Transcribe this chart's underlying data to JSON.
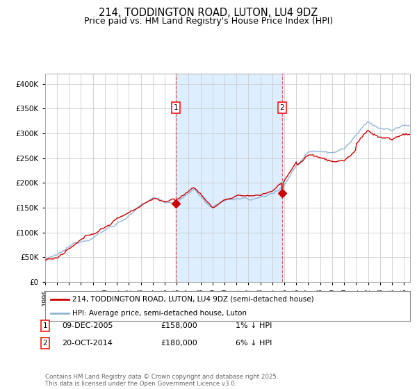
{
  "title_line1": "214, TODDINGTON ROAD, LUTON, LU4 9DZ",
  "title_line2": "Price paid vs. HM Land Registry's House Price Index (HPI)",
  "title_fontsize": 10.5,
  "subtitle_fontsize": 9,
  "hpi_color": "#92b4d4",
  "price_color": "#cc0000",
  "marker_color": "#cc0000",
  "bg_color": "#ffffff",
  "plot_bg_color": "#ffffff",
  "grid_color": "#cccccc",
  "highlight_color": "#dceeff",
  "sale1_date_num": 2005.94,
  "sale1_price": 158000,
  "sale2_date_num": 2014.8,
  "sale2_price": 180000,
  "legend_line1": "214, TODDINGTON ROAD, LUTON, LU4 9DZ (semi-detached house)",
  "legend_line2": "HPI: Average price, semi-detached house, Luton",
  "annotation1_label": "1",
  "annotation1_date": "09-DEC-2005",
  "annotation1_price": "£158,000",
  "annotation1_hpi": "1% ↓ HPI",
  "annotation2_label": "2",
  "annotation2_date": "20-OCT-2014",
  "annotation2_price": "£180,000",
  "annotation2_hpi": "6% ↓ HPI",
  "footer": "Contains HM Land Registry data © Crown copyright and database right 2025.\nThis data is licensed under the Open Government Licence v3.0.",
  "ylim_min": 0,
  "ylim_max": 420000,
  "ytick_vals": [
    0,
    50000,
    100000,
    150000,
    200000,
    250000,
    300000,
    350000,
    400000
  ],
  "xlim_min": 1995,
  "xlim_max": 2025.5
}
